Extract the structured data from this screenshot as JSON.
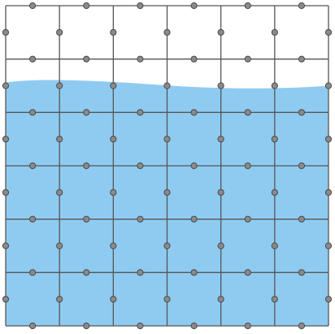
{
  "simulation": {
    "grid": {
      "columns": 6,
      "rows": 6
    },
    "fluid_fill_fraction": 0.75,
    "colors": {
      "background": "#ffffff",
      "fluid": "#8fcbf1",
      "grid_line": "#555555",
      "node_fill": "#8a8a8a",
      "node_stroke": "#4a4a4a"
    }
  }
}
